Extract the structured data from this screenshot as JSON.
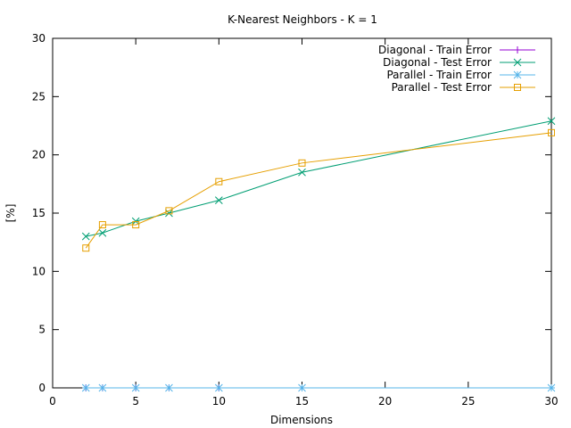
{
  "chart_data": {
    "type": "line",
    "title": "K-Nearest Neighbors - K = 1",
    "xlabel": "Dimensions",
    "ylabel": "[%]",
    "xlim": [
      0,
      30
    ],
    "ylim": [
      0,
      30
    ],
    "xticks": [
      0,
      5,
      10,
      15,
      20,
      25,
      30
    ],
    "yticks": [
      0,
      5,
      10,
      15,
      20,
      25,
      30
    ],
    "x": [
      2,
      3,
      5,
      7,
      10,
      15,
      30
    ],
    "grid": false,
    "legend_position": "top-right",
    "series": [
      {
        "name": "Diagonal - Train Error",
        "color": "#9400d3",
        "marker": "plus",
        "values": [
          0,
          0,
          0,
          0,
          0,
          0,
          0
        ]
      },
      {
        "name": "Diagonal - Test Error",
        "color": "#009e73",
        "marker": "cross",
        "values": [
          13.0,
          13.3,
          14.3,
          15.0,
          16.1,
          18.5,
          22.9
        ]
      },
      {
        "name": "Parallel - Train Error",
        "color": "#56b4e9",
        "marker": "star",
        "values": [
          0,
          0,
          0,
          0,
          0,
          0,
          0
        ]
      },
      {
        "name": "Parallel - Test Error",
        "color": "#e69f00",
        "marker": "square",
        "values": [
          12.0,
          14.0,
          14.0,
          15.2,
          17.7,
          19.3,
          21.9
        ]
      }
    ]
  }
}
